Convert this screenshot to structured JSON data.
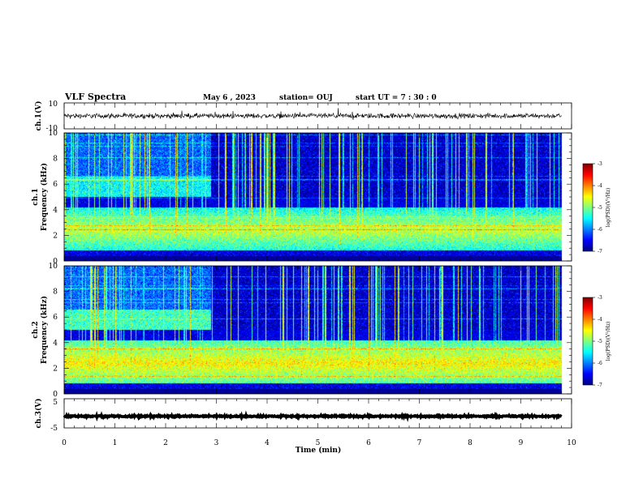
{
  "header": {
    "title": "VLF Spectra",
    "date": "May 6  , 2023",
    "station": "station= OUJ",
    "start_ut": "start  UT  =   7 : 30 : 0"
  },
  "chart_data": {
    "type": "heatmap",
    "x": {
      "label": "Time  (min)",
      "range": [
        0,
        10
      ],
      "ticks": [
        "0",
        "1",
        "2",
        "3",
        "4",
        "5",
        "6",
        "7",
        "8",
        "9",
        "10"
      ]
    },
    "panels": [
      {
        "id": "ch1-waveform",
        "kind": "line",
        "ylabel": "ch.1(V)",
        "yrange": [
          -10,
          10
        ],
        "ytick_labels": [
          "10",
          "-10"
        ],
        "level": 0,
        "noise": 1.2
      },
      {
        "id": "ch1-spectrogram",
        "kind": "heatmap",
        "ylabel_line1": "ch.1",
        "ylabel_line2": "Frequency  (kHz)",
        "yrange": [
          0,
          10
        ],
        "ytick_labels": [
          "0",
          "2",
          "4",
          "6",
          "8",
          "10"
        ],
        "colorbar": {
          "label": "log(PSD)(V²/Hz)",
          "range": [
            -7,
            -3
          ],
          "tick_labels": [
            "-3",
            "-4",
            "-5",
            "-6",
            "-7"
          ]
        }
      },
      {
        "id": "ch2-spectrogram",
        "kind": "heatmap",
        "ylabel_line1": "ch.2",
        "ylabel_line2": "Frequency  (kHz)",
        "yrange": [
          0,
          10
        ],
        "ytick_labels": [
          "0",
          "2",
          "4",
          "6",
          "8",
          "10"
        ],
        "colorbar": {
          "label": "log(PSD)(V²/Hz)",
          "range": [
            -7,
            -3
          ],
          "tick_labels": [
            "-3",
            "-4",
            "-5",
            "-6",
            "-7"
          ]
        }
      },
      {
        "id": "ch3-waveform",
        "kind": "line",
        "ylabel": "ch.3(V)",
        "yrange": [
          -5,
          5
        ],
        "ytick_labels": [
          "5",
          "-5"
        ],
        "level": -1,
        "noise": 0.15
      }
    ],
    "data_end_min": 9.8,
    "band_change_min": 2.9
  },
  "colors": {
    "jet": [
      "#00007f",
      "#0000ff",
      "#007fff",
      "#00ffff",
      "#7fff7f",
      "#ffff00",
      "#ff7f00",
      "#ff0000",
      "#7f0000"
    ]
  }
}
